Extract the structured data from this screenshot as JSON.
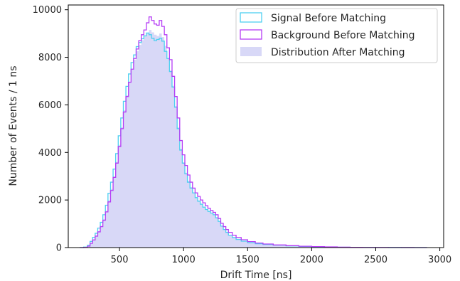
{
  "chart_data": {
    "type": "histogram",
    "xlabel": "Drift Time [ns]",
    "ylabel": "Number of Events / 1 ns",
    "xlim": [
      100,
      3030
    ],
    "ylim": [
      0,
      10200
    ],
    "xticks": [
      500,
      1000,
      1500,
      2000,
      2500,
      3000
    ],
    "yticks": [
      0,
      2000,
      4000,
      6000,
      8000,
      10000
    ],
    "legend_position": "top-right",
    "series": [
      {
        "name": "Signal Before Matching",
        "style": "step",
        "color": "#4dd0f0",
        "x": [
          190,
          220,
          250,
          270,
          290,
          310,
          330,
          350,
          370,
          390,
          410,
          430,
          450,
          470,
          490,
          510,
          530,
          550,
          570,
          590,
          610,
          630,
          650,
          670,
          690,
          710,
          730,
          750,
          770,
          790,
          810,
          830,
          850,
          870,
          890,
          910,
          930,
          950,
          970,
          990,
          1010,
          1030,
          1050,
          1070,
          1090,
          1110,
          1130,
          1150,
          1170,
          1190,
          1210,
          1230,
          1250,
          1270,
          1290,
          1310,
          1330,
          1350,
          1380,
          1410,
          1450,
          1500,
          1560,
          1620,
          1700,
          1800,
          1900,
          2000,
          2100,
          2200,
          2300,
          2400,
          2500,
          2600,
          2700,
          2800,
          2900
        ],
        "values": [
          0,
          20,
          100,
          260,
          430,
          600,
          820,
          1060,
          1380,
          1780,
          2280,
          2750,
          3300,
          3950,
          4700,
          5450,
          6150,
          6780,
          7300,
          7780,
          8100,
          8450,
          8620,
          8780,
          8900,
          9020,
          8950,
          8800,
          8700,
          8750,
          8800,
          8680,
          8250,
          7950,
          7400,
          6750,
          5900,
          5000,
          4100,
          3550,
          3100,
          2750,
          2500,
          2300,
          2100,
          1950,
          1820,
          1700,
          1600,
          1520,
          1450,
          1380,
          1250,
          1100,
          900,
          760,
          640,
          520,
          420,
          340,
          270,
          200,
          160,
          130,
          100,
          70,
          50,
          35,
          25,
          15,
          10,
          6,
          4,
          2,
          1,
          0
        ]
      },
      {
        "name": "Background Before Matching",
        "style": "step",
        "color": "#b53cf5",
        "x": [
          190,
          220,
          250,
          270,
          290,
          310,
          330,
          350,
          370,
          390,
          410,
          430,
          450,
          470,
          490,
          510,
          530,
          550,
          570,
          590,
          610,
          630,
          650,
          670,
          690,
          710,
          730,
          750,
          770,
          790,
          810,
          830,
          850,
          870,
          890,
          910,
          930,
          950,
          970,
          990,
          1010,
          1030,
          1050,
          1070,
          1090,
          1110,
          1130,
          1150,
          1170,
          1190,
          1210,
          1230,
          1250,
          1270,
          1290,
          1310,
          1330,
          1350,
          1380,
          1410,
          1450,
          1500,
          1560,
          1620,
          1700,
          1800,
          1900,
          2000,
          2100,
          2200,
          2300,
          2400,
          2500,
          2600,
          2700,
          2800,
          2900
        ],
        "values": [
          0,
          10,
          60,
          180,
          320,
          480,
          660,
          880,
          1150,
          1500,
          1920,
          2400,
          2950,
          3550,
          4250,
          5000,
          5700,
          6350,
          6950,
          7500,
          7950,
          8350,
          8700,
          8950,
          9150,
          9450,
          9700,
          9550,
          9400,
          9350,
          9550,
          9300,
          8950,
          8400,
          7900,
          7200,
          6350,
          5450,
          4500,
          3900,
          3450,
          3050,
          2750,
          2500,
          2300,
          2150,
          2000,
          1880,
          1760,
          1650,
          1560,
          1480,
          1380,
          1220,
          1020,
          880,
          760,
          640,
          520,
          420,
          330,
          250,
          190,
          150,
          110,
          80,
          55,
          40,
          28,
          18,
          12,
          8,
          5,
          3,
          2,
          0
        ]
      },
      {
        "name": "Distribution After Matching",
        "style": "filled",
        "color": "#d8d8f7",
        "x": [
          190,
          220,
          250,
          270,
          290,
          310,
          330,
          350,
          370,
          390,
          410,
          430,
          450,
          470,
          490,
          510,
          530,
          550,
          570,
          590,
          610,
          630,
          650,
          670,
          690,
          710,
          730,
          750,
          770,
          790,
          810,
          830,
          850,
          870,
          890,
          910,
          930,
          950,
          970,
          990,
          1010,
          1030,
          1050,
          1070,
          1090,
          1110,
          1130,
          1150,
          1170,
          1190,
          1210,
          1230,
          1250,
          1270,
          1290,
          1310,
          1330,
          1350,
          1380,
          1410,
          1450,
          1500,
          1560,
          1620,
          1700,
          1800,
          1900,
          2000,
          2100,
          2200,
          2300,
          2400,
          2500,
          2600,
          2700,
          2800,
          2900
        ],
        "values": [
          0,
          10,
          70,
          190,
          340,
          500,
          690,
          910,
          1190,
          1550,
          1990,
          2460,
          2990,
          3600,
          4320,
          5050,
          5770,
          6400,
          6980,
          7480,
          7900,
          8260,
          8520,
          8720,
          8880,
          9020,
          9150,
          9050,
          8950,
          8900,
          9000,
          8850,
          8480,
          7950,
          7450,
          6800,
          5950,
          5050,
          4150,
          3580,
          3150,
          2800,
          2540,
          2320,
          2130,
          1980,
          1850,
          1720,
          1610,
          1520,
          1440,
          1360,
          1240,
          1080,
          890,
          760,
          640,
          520,
          420,
          340,
          265,
          200,
          155,
          120,
          90,
          65,
          45,
          32,
          22,
          14,
          9,
          6,
          4,
          2,
          1,
          0
        ]
      }
    ]
  }
}
